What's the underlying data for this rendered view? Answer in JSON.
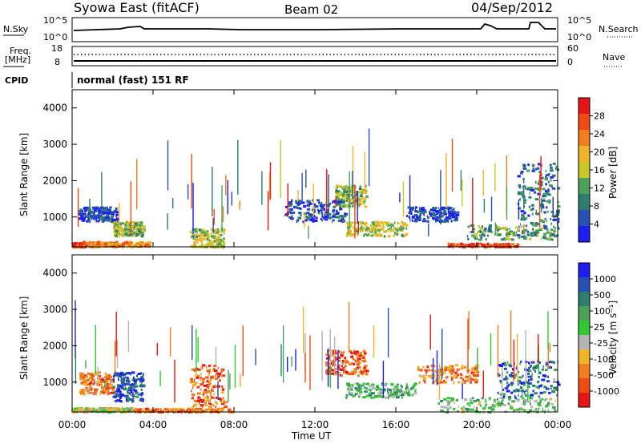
{
  "header": {
    "station": "Syowa East (fitACF)",
    "beam": "Beam 02",
    "date": "04/Sep/2012"
  },
  "params": {
    "nsky_label": "N.Sky",
    "nsky_ticks": [
      "10^5",
      "10^0"
    ],
    "nsearch_label": "N.Search",
    "nsearch_ticks": [
      "10^5",
      "10^0"
    ],
    "freq_label": "Freq.",
    "freq_unit": "[MHz]",
    "freq_ticks": [
      "18",
      "8"
    ],
    "nave_label": "Nave",
    "nave_ticks": [
      "60",
      "0"
    ],
    "cpid_label": "CPID",
    "cpid_text": "normal (fast) 151 RF"
  },
  "colors": {
    "power": [
      "#1e1ef0",
      "#2850b4",
      "#2d7d6e",
      "#4ba05a",
      "#c8c828",
      "#f0b428",
      "#f07d1e",
      "#f04b14",
      "#e61414"
    ],
    "velocity": [
      "#e61414",
      "#f04b14",
      "#f07d1e",
      "#f0b428",
      "#b4b4b4",
      "#32c832",
      "#4ba05a",
      "#2d7d6e",
      "#2850b4",
      "#1e1ef0"
    ]
  },
  "chart_data": [
    {
      "type": "heatmap",
      "panel": "power",
      "ylabel": "Slant Range [km]",
      "yticks": [
        "1000",
        "2000",
        "3000",
        "4000"
      ],
      "ylim": [
        180,
        4500
      ],
      "colorbar_label": "Power [dB]",
      "colorbar_ticks": [
        "4",
        "8",
        "12",
        "16",
        "20",
        "24",
        "28"
      ],
      "scatter_regions": [
        {
          "t0": 0.0,
          "t1": 0.6,
          "r0": 200,
          "r1": 320,
          "level": 0.85
        },
        {
          "t0": 0.3,
          "t1": 2.2,
          "r0": 900,
          "r1": 1300,
          "level": 0.1
        },
        {
          "t0": 0.5,
          "t1": 3.8,
          "r0": 200,
          "r1": 350,
          "level": 0.7
        },
        {
          "t0": 2.0,
          "t1": 3.5,
          "r0": 500,
          "r1": 900,
          "level": 0.45
        },
        {
          "t0": 5.8,
          "t1": 7.5,
          "r0": 200,
          "r1": 700,
          "level": 0.5
        },
        {
          "t0": 10.5,
          "t1": 13.5,
          "r0": 900,
          "r1": 1500,
          "level": 0.15
        },
        {
          "t0": 13.0,
          "t1": 14.5,
          "r0": 1300,
          "r1": 1900,
          "level": 0.45
        },
        {
          "t0": 13.5,
          "t1": 16.5,
          "r0": 500,
          "r1": 900,
          "level": 0.5
        },
        {
          "t0": 16.5,
          "t1": 19.0,
          "r0": 900,
          "r1": 1300,
          "level": 0.15
        },
        {
          "t0": 18.5,
          "t1": 22.0,
          "r0": 200,
          "r1": 300,
          "level": 0.9
        },
        {
          "t0": 19.5,
          "t1": 24.0,
          "r0": 400,
          "r1": 800,
          "level": 0.35
        },
        {
          "t0": 22.0,
          "t1": 24.0,
          "r0": 800,
          "r1": 2500,
          "level": 0.25
        }
      ]
    },
    {
      "type": "heatmap",
      "panel": "velocity",
      "ylabel": "Slant Range [km]",
      "yticks": [
        "1000",
        "2000",
        "3000",
        "4000"
      ],
      "ylim": [
        180,
        4500
      ],
      "colorbar_label": "Velocity [m s⁻¹]",
      "colorbar_ticks": [
        "-1000",
        "-500",
        "-100",
        "-25",
        "25",
        "100",
        "500",
        "1000"
      ],
      "xlabel": "Time UT",
      "xticks": [
        "00:00",
        "04:00",
        "08:00",
        "12:00",
        "16:00",
        "20:00",
        "00:00"
      ],
      "xlim": [
        0,
        24
      ],
      "scatter_regions": [
        {
          "t0": 0.3,
          "t1": 2.0,
          "r0": 700,
          "r1": 1300,
          "level": 0.25
        },
        {
          "t0": 2.0,
          "t1": 3.5,
          "r0": 500,
          "r1": 1300,
          "level": 0.85
        },
        {
          "t0": 0.0,
          "t1": 3.0,
          "r0": 200,
          "r1": 320,
          "level": 0.45
        },
        {
          "t0": 3.0,
          "t1": 8.0,
          "r0": 200,
          "r1": 300,
          "level": 0.25
        },
        {
          "t0": 5.8,
          "t1": 7.5,
          "r0": 300,
          "r1": 1500,
          "level": 0.2
        },
        {
          "t0": 12.5,
          "t1": 14.5,
          "r0": 1200,
          "r1": 1900,
          "level": 0.15
        },
        {
          "t0": 13.5,
          "t1": 17.0,
          "r0": 600,
          "r1": 1000,
          "level": 0.6
        },
        {
          "t0": 17.0,
          "t1": 20.0,
          "r0": 1000,
          "r1": 1500,
          "level": 0.25
        },
        {
          "t0": 18.0,
          "t1": 24.0,
          "r0": 200,
          "r1": 600,
          "level": 0.55
        },
        {
          "t0": 21.0,
          "t1": 24.0,
          "r0": 600,
          "r1": 1600,
          "level": 0.8
        }
      ]
    }
  ]
}
